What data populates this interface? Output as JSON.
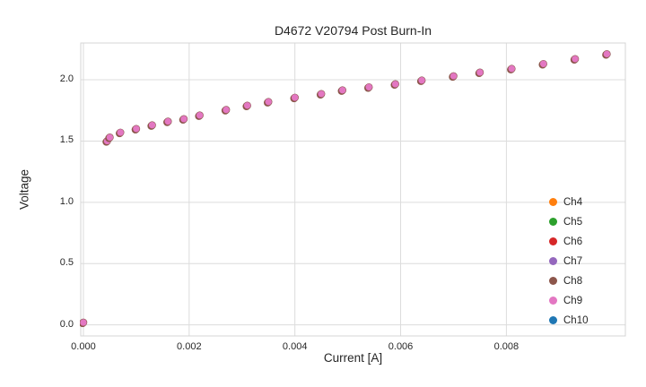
{
  "chart_data": {
    "type": "scatter",
    "title": "D4672 V20794 Post Burn-In",
    "xlabel": "Current [A]",
    "ylabel": "Voltage",
    "xlim": [
      -5e-05,
      0.01025
    ],
    "ylim": [
      -0.09,
      2.3
    ],
    "xticks": [
      0.0,
      0.002,
      0.004,
      0.006,
      0.008
    ],
    "xtick_labels": [
      "0.000",
      "0.002",
      "0.004",
      "0.006",
      "0.008"
    ],
    "yticks": [
      0.0,
      0.5,
      1.0,
      1.5,
      2.0
    ],
    "ytick_labels": [
      "0.0",
      "0.5",
      "1.0",
      "1.5",
      "2.0"
    ],
    "grid": true,
    "grid_color": "#dcdcdc",
    "frame_color": "#d4d4d4",
    "legend_position": "lower right",
    "series": [
      {
        "name": "Ch4",
        "color": "#ff7f0e"
      },
      {
        "name": "Ch5",
        "color": "#2ca02c"
      },
      {
        "name": "Ch6",
        "color": "#d62728"
      },
      {
        "name": "Ch7",
        "color": "#9467bd"
      },
      {
        "name": "Ch8",
        "color": "#8c564b"
      },
      {
        "name": "Ch9",
        "color": "#e377c2"
      },
      {
        "name": "Ch10",
        "color": "#1f77b4"
      }
    ],
    "overlap_note": "All channels plot nearly identical IV curves; the pink Ch9 markers are drawn on top and hide the others.",
    "x": [
      0.0,
      0.00045,
      0.0005,
      0.0007,
      0.001,
      0.0013,
      0.0016,
      0.0019,
      0.0022,
      0.0027,
      0.0031,
      0.0035,
      0.004,
      0.0045,
      0.0049,
      0.0054,
      0.0059,
      0.0064,
      0.007,
      0.0075,
      0.0081,
      0.0087,
      0.0093,
      0.0099
    ],
    "y": [
      0.02,
      1.5,
      1.53,
      1.57,
      1.6,
      1.63,
      1.66,
      1.68,
      1.71,
      1.755,
      1.79,
      1.82,
      1.855,
      1.885,
      1.915,
      1.94,
      1.965,
      1.995,
      2.03,
      2.06,
      2.09,
      2.13,
      2.17,
      2.21
    ],
    "marker": {
      "fill": "#e377c2",
      "edge": "#8c564b",
      "radius_px": 4
    }
  }
}
